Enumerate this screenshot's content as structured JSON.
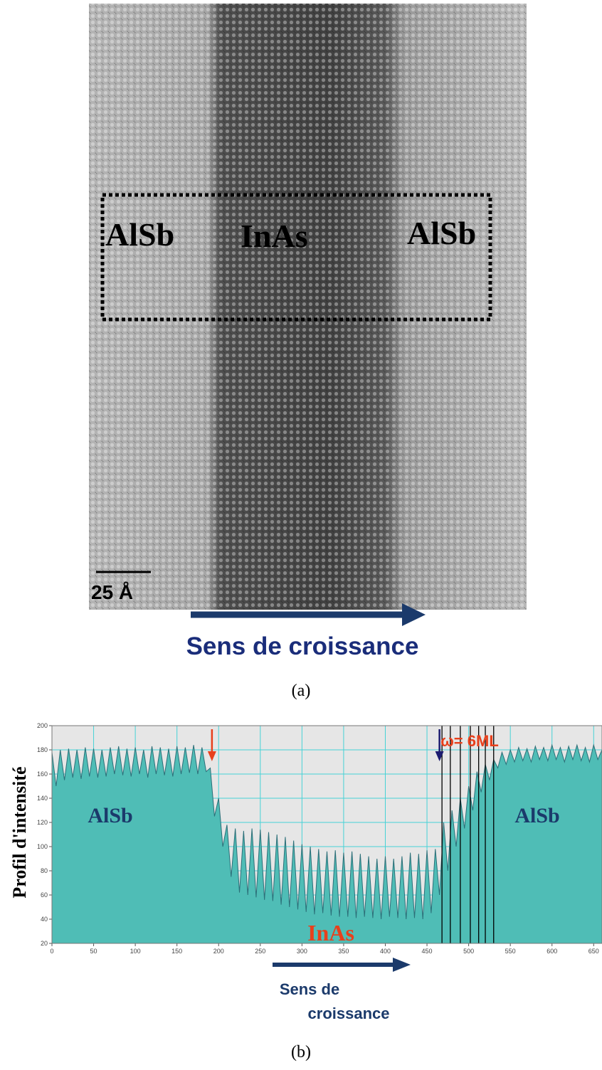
{
  "image_a": {
    "labels": [
      "AlSb",
      "InAs",
      "AlSb"
    ],
    "scale_bar": "25 Å",
    "caption": "Sens de croissance",
    "panel": "(a)"
  },
  "chart_data": {
    "type": "area",
    "y_label": "Profil d'intensité",
    "annotations": {
      "left": "AlSb",
      "middle": "InAs",
      "right": "AlSb",
      "width": "ω= 6ML",
      "direction": [
        "Sens de",
        "croissance"
      ],
      "panel": "(b)"
    },
    "x": [
      0,
      5,
      10,
      15,
      20,
      25,
      30,
      35,
      40,
      45,
      50,
      55,
      60,
      65,
      70,
      75,
      80,
      85,
      90,
      95,
      100,
      105,
      110,
      115,
      120,
      125,
      130,
      135,
      140,
      145,
      150,
      155,
      160,
      165,
      170,
      175,
      180,
      185,
      190,
      195,
      200,
      205,
      210,
      215,
      220,
      225,
      230,
      235,
      240,
      245,
      250,
      255,
      260,
      265,
      270,
      275,
      280,
      285,
      290,
      295,
      300,
      305,
      310,
      315,
      320,
      325,
      330,
      335,
      340,
      345,
      350,
      355,
      360,
      365,
      370,
      375,
      380,
      385,
      390,
      395,
      400,
      405,
      410,
      415,
      420,
      425,
      430,
      435,
      440,
      445,
      450,
      455,
      460,
      465,
      470,
      475,
      480,
      485,
      490,
      495,
      500,
      505,
      510,
      515,
      520,
      525,
      530,
      535,
      540,
      545,
      550,
      555,
      560,
      565,
      570,
      575,
      580,
      585,
      590,
      595,
      600,
      605,
      610,
      615,
      620,
      625,
      630,
      635,
      640,
      645,
      650,
      655,
      660
    ],
    "values": [
      178,
      150,
      180,
      155,
      181,
      157,
      180,
      156,
      182,
      158,
      181,
      157,
      180,
      158,
      182,
      160,
      183,
      159,
      181,
      158,
      182,
      160,
      180,
      157,
      183,
      160,
      182,
      159,
      181,
      158,
      183,
      160,
      182,
      161,
      184,
      160,
      182,
      162,
      165,
      125,
      140,
      100,
      118,
      75,
      115,
      62,
      113,
      60,
      115,
      58,
      114,
      56,
      112,
      55,
      110,
      52,
      108,
      50,
      105,
      48,
      102,
      46,
      100,
      44,
      98,
      45,
      96,
      43,
      97,
      42,
      95,
      42,
      96,
      41,
      94,
      42,
      92,
      41,
      90,
      40,
      92,
      42,
      90,
      41,
      92,
      40,
      95,
      41,
      94,
      40,
      97,
      45,
      98,
      60,
      120,
      80,
      130,
      100,
      140,
      115,
      150,
      130,
      162,
      145,
      168,
      155,
      172,
      165,
      178,
      168,
      180,
      170,
      182,
      171,
      181,
      170,
      183,
      172,
      182,
      171,
      184,
      172,
      182,
      170,
      183,
      172,
      184,
      171,
      182,
      170,
      184,
      172,
      180
    ],
    "color": "#4fbdb6",
    "line_color": "#2b6f78",
    "xlim": [
      0,
      660
    ],
    "ylim": [
      20,
      200
    ],
    "xticks": [
      0,
      50,
      100,
      150,
      200,
      250,
      300,
      350,
      400,
      450,
      500,
      550,
      600,
      650
    ],
    "yticks": [
      20,
      40,
      60,
      80,
      100,
      120,
      140,
      160,
      180,
      200
    ],
    "grid": true,
    "grid_color": "#46d2d6",
    "marker_lines_x": [
      468,
      478,
      490,
      502,
      512,
      520,
      530
    ],
    "arrows": [
      {
        "x": 192,
        "color": "#e8401c"
      },
      {
        "x": 465,
        "color": "#1c1c70"
      }
    ]
  }
}
